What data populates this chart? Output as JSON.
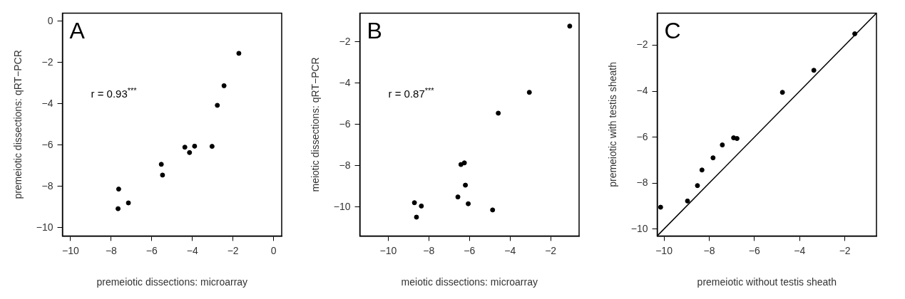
{
  "chart_data": [
    {
      "type": "scatter",
      "xlabel": "premeiotic dissections: microarray",
      "ylabel": "premeiotic dissections: qRT−PCR",
      "annotations": [
        "A",
        "r = 0.93$^{***}$"
      ],
      "marker": "circle",
      "color": "#000000",
      "x": [
        -1.71,
        -2.44,
        -2.77,
        -4.37,
        -3.89,
        -4.14,
        -3.03,
        -5.53,
        -5.47,
        -7.63,
        -7.15,
        -7.66
      ],
      "values": [
        -1.55,
        -3.12,
        -4.07,
        -6.1,
        -6.05,
        -6.36,
        -6.06,
        -6.93,
        -7.45,
        -8.13,
        -8.8,
        -9.08
      ],
      "xlim": [
        -10.4,
        0.4
      ],
      "xticks": [
        -10,
        -8,
        -6,
        -4,
        -2,
        0
      ],
      "ylim": [
        -10.4,
        0.4
      ],
      "yticks": [
        -10,
        -8,
        -6,
        -4,
        -2,
        0
      ]
    },
    {
      "type": "scatter",
      "xlabel": "meiotic dissections: microarray",
      "ylabel": "meiotic dissections: qRT−PCR",
      "annotations": [
        "B",
        "r = 0.87$^{***}$"
      ],
      "marker": "circle",
      "color": "#000000",
      "x": [
        -1.06,
        -3.05,
        -4.58,
        -6.25,
        -6.42,
        -6.2,
        -6.57,
        -6.06,
        -4.86,
        -8.71,
        -8.37,
        -8.61
      ],
      "values": [
        -1.23,
        -4.44,
        -5.45,
        -7.86,
        -7.94,
        -8.94,
        -9.51,
        -9.84,
        -10.14,
        -9.79,
        -9.95,
        -10.49
      ],
      "xlim": [
        -11.4,
        -0.6
      ],
      "xticks": [
        -10,
        -8,
        -6,
        -4,
        -2
      ],
      "ylim": [
        -11.4,
        -0.6
      ],
      "yticks": [
        -10,
        -8,
        -6,
        -4,
        -2
      ]
    },
    {
      "type": "scatter",
      "xlabel": "premeiotic without testis sheath",
      "ylabel": "premeiotic with testis sheath",
      "annotations": [
        "C"
      ],
      "marker": "circle",
      "series": [
        {
          "type": "scatter",
          "color": "#000000",
          "x": [
            -10.15,
            -8.96,
            -8.52,
            -8.32,
            -7.83,
            -7.42,
            -6.92,
            -6.77,
            -4.76,
            -3.37,
            -1.56
          ],
          "values": [
            -9.05,
            -8.78,
            -8.11,
            -7.43,
            -6.9,
            -6.34,
            -6.03,
            -6.06,
            -4.05,
            -3.09,
            -1.5
          ]
        },
        {
          "type": "line",
          "marker": "none",
          "color": "#000000",
          "x": [
            -10.3,
            -0.6
          ],
          "values": [
            -10.3,
            -0.6
          ]
        }
      ],
      "xlim": [
        -10.3,
        -0.6
      ],
      "xticks": [
        -10,
        -8,
        -6,
        -4,
        -2
      ],
      "ylim": [
        -10.3,
        -0.6
      ],
      "yticks": [
        -10,
        -8,
        -6,
        -4,
        -2
      ]
    }
  ]
}
